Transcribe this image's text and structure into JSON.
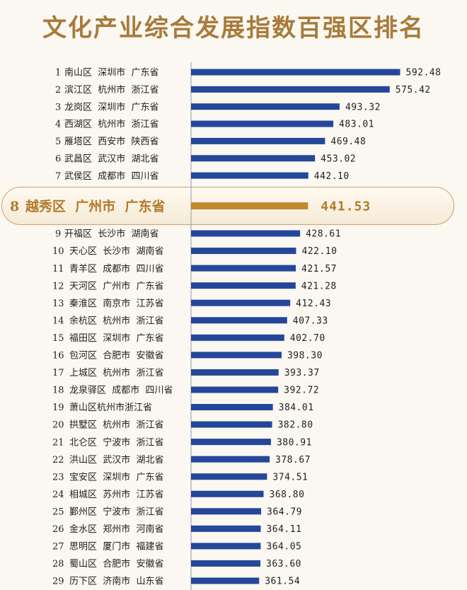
{
  "title": "文化产业综合发展指数百强区排名",
  "colors": {
    "bar": "#24479a",
    "highlight_bar": "#c18a2c",
    "highlight_text": "#b27a2a",
    "title": "#a77b3a"
  },
  "chart_data": {
    "type": "bar",
    "orientation": "horizontal",
    "title": "文化产业综合发展指数百强区排名",
    "highlight_rank": 8,
    "xlim": [
      250,
      600
    ],
    "rows": [
      {
        "rank": "1",
        "label": "南山区  深圳市  广东省",
        "value": 592.48,
        "value_text": "592.48"
      },
      {
        "rank": "2",
        "label": "滨江区  杭州市  浙江省",
        "value": 575.42,
        "value_text": "575.42"
      },
      {
        "rank": "3",
        "label": "龙岗区  深圳市  广东省",
        "value": 493.32,
        "value_text": "493.32"
      },
      {
        "rank": "4",
        "label": "西湖区  杭州市  浙江省",
        "value": 483.01,
        "value_text": "483.01"
      },
      {
        "rank": "5",
        "label": "雁塔区  西安市  陕西省",
        "value": 469.48,
        "value_text": "469.48"
      },
      {
        "rank": "6",
        "label": "武昌区  武汉市  湖北省",
        "value": 453.02,
        "value_text": "453.02"
      },
      {
        "rank": "7",
        "label": "武侯区  成都市  四川省",
        "value": 442.1,
        "value_text": "442.10"
      },
      {
        "rank": "8",
        "label": "越秀区  广州市  广东省",
        "value": 441.53,
        "value_text": "441.53"
      },
      {
        "rank": "9",
        "label": "开福区  长沙市  湖南省",
        "value": 428.61,
        "value_text": "428.61"
      },
      {
        "rank": "10",
        "label": "天心区  长沙市  湖南省",
        "value": 422.1,
        "value_text": "422.10"
      },
      {
        "rank": "11",
        "label": "青羊区  成都市  四川省",
        "value": 421.57,
        "value_text": "421.57"
      },
      {
        "rank": "12",
        "label": "天河区  广州市  广东省",
        "value": 421.28,
        "value_text": "421.28"
      },
      {
        "rank": "13",
        "label": "秦淮区  南京市  江苏省",
        "value": 412.43,
        "value_text": "412.43"
      },
      {
        "rank": "14",
        "label": "余杭区  杭州市  浙江省",
        "value": 407.33,
        "value_text": "407.33"
      },
      {
        "rank": "15",
        "label": "福田区  深圳市  广东省",
        "value": 402.7,
        "value_text": "402.70"
      },
      {
        "rank": "16",
        "label": "包河区  合肥市  安徽省",
        "value": 398.3,
        "value_text": "398.30"
      },
      {
        "rank": "17",
        "label": "上城区  杭州市  浙江省",
        "value": 393.37,
        "value_text": "393.37"
      },
      {
        "rank": "18",
        "label": "龙泉驿区  成都市  四川省",
        "value": 392.72,
        "value_text": "392.72"
      },
      {
        "rank": "19",
        "label": "萧山区杭州市浙江省",
        "value": 384.01,
        "value_text": "384.01"
      },
      {
        "rank": "20",
        "label": "拱墅区  杭州市  浙江省",
        "value": 382.8,
        "value_text": "382.80"
      },
      {
        "rank": "21",
        "label": "北仑区  宁波市  浙江省",
        "value": 380.91,
        "value_text": "380.91"
      },
      {
        "rank": "22",
        "label": "洪山区  武汉市  湖北省",
        "value": 378.67,
        "value_text": "378.67"
      },
      {
        "rank": "23",
        "label": "宝安区  深圳市  广东省",
        "value": 374.51,
        "value_text": "374.51"
      },
      {
        "rank": "24",
        "label": "相城区  苏州市  江苏省",
        "value": 368.8,
        "value_text": "368.80"
      },
      {
        "rank": "25",
        "label": "鄞州区  宁波市  浙江省",
        "value": 364.79,
        "value_text": "364.79"
      },
      {
        "rank": "26",
        "label": "金水区  郑州市  河南省",
        "value": 364.11,
        "value_text": "364.11"
      },
      {
        "rank": "27",
        "label": "思明区  厦门市  福建省",
        "value": 364.05,
        "value_text": "364.05"
      },
      {
        "rank": "28",
        "label": "蜀山区  合肥市  安徽省",
        "value": 363.6,
        "value_text": "363.60"
      },
      {
        "rank": "29",
        "label": "历下区  济南市  山东省",
        "value": 361.54,
        "value_text": "361.54"
      }
    ]
  }
}
